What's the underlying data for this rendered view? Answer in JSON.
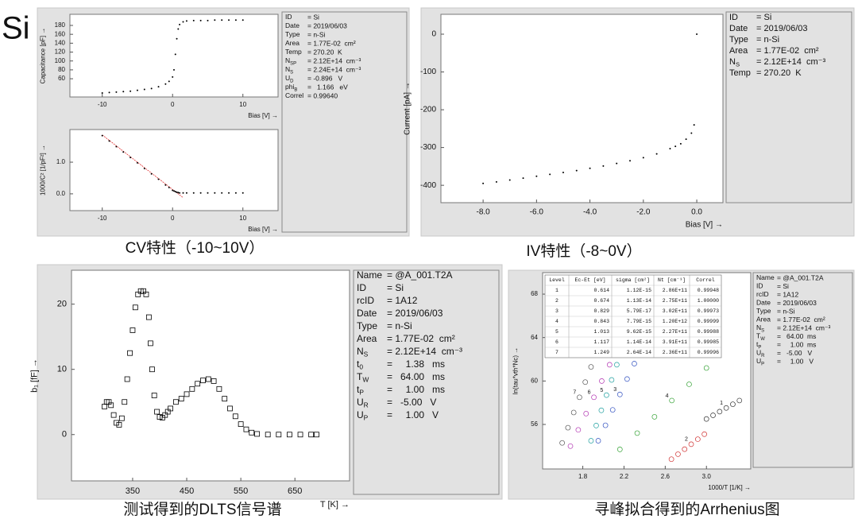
{
  "title": "Si",
  "chart_data": [
    {
      "type": "scatter",
      "xlabel": "Bias [V] →",
      "ylabel": "Capacitance [pF] →",
      "xlim": [
        -14.6,
        15
      ],
      "ylim": [
        19,
        205
      ],
      "xticks": [
        -10,
        0,
        10
      ],
      "yticks": [
        60,
        80,
        100,
        120,
        140,
        160,
        180
      ],
      "series": [
        {
          "marker": "dot",
          "color": "#000000",
          "x": [
            -10,
            -9,
            -8,
            -7,
            -6,
            -5,
            -4,
            -3,
            -2,
            -1,
            -0.5,
            0,
            0.2,
            0.4,
            0.6,
            0.8,
            1,
            1.5,
            2,
            3,
            4,
            5,
            6,
            7,
            8,
            9,
            10
          ],
          "values": [
            28,
            29,
            30,
            31,
            32,
            34,
            36,
            38,
            42,
            48,
            54,
            64,
            80,
            115,
            150,
            172,
            182,
            188,
            190,
            191,
            191,
            191,
            192,
            192,
            192,
            192,
            192
          ]
        }
      ],
      "caption": "CV特性（-10~10V）",
      "info": [
        {
          "key": "ID",
          "value": "= Si"
        },
        {
          "key": "Date",
          "value": "= 2019/06/03"
        },
        {
          "key": "Type",
          "value": "= n-Si"
        },
        {
          "key": "Area",
          "value": "= 1.77E-02  cm²"
        },
        {
          "key": "Temp",
          "value": "= 270.20  K"
        },
        {
          "key": "N",
          "sub": "SP",
          "value": "= 2.12E+14  cm⁻³"
        },
        {
          "key": "N",
          "sub": "S",
          "value": "= 2.24E+14  cm⁻³"
        },
        {
          "key": "U",
          "sub": "D",
          "value": "= -0.896   V"
        },
        {
          "key": "phi",
          "sub": "B",
          "value": "=   1.166   eV"
        },
        {
          "key": "Correl",
          "value": "= 0.99640"
        }
      ]
    },
    {
      "type": "scatter",
      "xlabel": "Bias [V] →",
      "ylabel": "1000/C² [1/pF²] →",
      "xlim": [
        -14.6,
        15
      ],
      "ylim": [
        -0.53,
        2.03
      ],
      "xticks": [
        -10,
        0,
        10
      ],
      "yticks": [
        {
          "value": 0,
          "label": "0.0"
        },
        {
          "value": 1,
          "label": "1.0"
        }
      ],
      "series": [
        {
          "marker": "line",
          "color": "#e03030",
          "x": [
            -10,
            1.5
          ],
          "values": [
            1.86,
            -0.12
          ]
        },
        {
          "marker": "dot",
          "color": "#000000",
          "x": [
            -10,
            -9,
            -8,
            -7,
            -6,
            -5,
            -4,
            -3,
            -2,
            -1,
            -0.5,
            0,
            0.2,
            0.4,
            0.6,
            0.8,
            1,
            1.5,
            2,
            3,
            4,
            5,
            6,
            7,
            8,
            9,
            10
          ],
          "values": [
            1.84,
            1.67,
            1.49,
            1.32,
            1.15,
            0.98,
            0.8,
            0.63,
            0.46,
            0.28,
            0.2,
            0.11,
            0.09,
            0.07,
            0.05,
            0.04,
            0.03,
            0.03,
            0.03,
            0.03,
            0.03,
            0.03,
            0.03,
            0.03,
            0.03,
            0.03,
            0.03
          ]
        }
      ]
    },
    {
      "type": "scatter",
      "xlabel": "Bias [V] →",
      "ylabel": "Current [pA] →",
      "xlim": [
        -9.58,
        0.98
      ],
      "ylim": [
        -446,
        52.6
      ],
      "xticks": [
        {
          "value": -8,
          "label": "-8.0"
        },
        {
          "value": -6,
          "label": "-6.0"
        },
        {
          "value": -4,
          "label": "-4.0"
        },
        {
          "value": -2,
          "label": "-2.0"
        },
        {
          "value": 0,
          "label": "0.0"
        }
      ],
      "yticks": [
        -400,
        -300,
        -200,
        -100,
        0
      ],
      "series": [
        {
          "marker": "dot",
          "color": "#000000",
          "x": [
            -8,
            -7.5,
            -7,
            -6.5,
            -6,
            -5.5,
            -5,
            -4.5,
            -4,
            -3.5,
            -3,
            -2.5,
            -2,
            -1.5,
            -1,
            -0.8,
            -0.6,
            -0.4,
            -0.2,
            -0.1,
            0
          ],
          "values": [
            -395,
            -391,
            -386,
            -381,
            -376,
            -371,
            -366,
            -361,
            -355,
            -349,
            -342,
            -335,
            -327,
            -317,
            -303,
            -297,
            -290,
            -278,
            -262,
            -240,
            0
          ]
        }
      ],
      "caption": "IV特性（-8~0V）",
      "info": [
        {
          "key": "ID",
          "value": "= Si"
        },
        {
          "key": "Date",
          "value": "= 2019/06/03"
        },
        {
          "key": "Type",
          "value": "= n-Si"
        },
        {
          "key": "Area",
          "value": "= 1.77E-02  cm²"
        },
        {
          "key": "N",
          "sub": "S",
          "value": "= 2.12E+14  cm⁻³"
        },
        {
          "key": "Temp",
          "value": "= 270.20  K"
        }
      ]
    },
    {
      "type": "scatter",
      "xlabel": "T [K] →",
      "ylabel": "b₁ [fF] →",
      "xlim": [
        237,
        751
      ],
      "ylim": [
        -7.1,
        25.2
      ],
      "xticks": [
        350,
        450,
        550,
        650
      ],
      "yticks": [
        0,
        10,
        20
      ],
      "series": [
        {
          "marker": "square",
          "color": "#000000",
          "x": [
            298,
            302,
            306,
            310,
            315,
            320,
            325,
            330,
            335,
            340,
            345,
            350,
            355,
            360,
            365,
            370,
            375,
            380,
            383,
            386,
            390,
            395,
            400,
            405,
            410,
            415,
            420,
            430,
            440,
            450,
            460,
            470,
            480,
            490,
            500,
            510,
            520,
            530,
            540,
            550,
            560,
            570,
            580,
            600,
            620,
            640,
            660,
            680,
            690
          ],
          "values": [
            4.3,
            5,
            5,
            4.5,
            3,
            1.8,
            1.5,
            2.5,
            5,
            8.5,
            12.5,
            16,
            19.5,
            21.5,
            22,
            22,
            21.5,
            18,
            14,
            10,
            6,
            3.5,
            2.7,
            2.6,
            3,
            3.5,
            4,
            5,
            5.5,
            6.2,
            7,
            7.8,
            8.3,
            8.5,
            8.2,
            7,
            5.5,
            4,
            2.8,
            1.6,
            0.8,
            0.3,
            0.1,
            0,
            0,
            0,
            0,
            0,
            0
          ]
        }
      ],
      "caption": "测试得到的DLTS信号谱",
      "info": [
        {
          "key": "Name",
          "value": "= @A_001.T2A"
        },
        {
          "key": "ID",
          "value": "= Si"
        },
        {
          "key": "rcID",
          "value": "= 1A12"
        },
        {
          "key": "Date",
          "value": "= 2019/06/03"
        },
        {
          "key": "Type",
          "value": "= n-Si"
        },
        {
          "key": "Area",
          "value": "= 1.77E-02  cm²"
        },
        {
          "key": "N",
          "sub": "S",
          "value": "= 2.12E+14  cm⁻³"
        },
        {
          "key": "t",
          "sub": "0",
          "value": "=     1.38   ms"
        },
        {
          "key": "T",
          "sub": "W",
          "value": "=   64.00   ms"
        },
        {
          "key": "t",
          "sub": "P",
          "value": "=     1.00   ms"
        },
        {
          "key": "U",
          "sub": "R",
          "value": "=   -5.00   V"
        },
        {
          "key": "U",
          "sub": "P",
          "value": "=     1.00   V"
        }
      ]
    },
    {
      "type": "scatter",
      "xlabel": "1000/T [1/K] →",
      "ylabel": "ln(tau*vth*Nc) →",
      "xlim": [
        1.41,
        3.43
      ],
      "ylim": [
        51.9,
        69.98
      ],
      "xticks": [
        1.8,
        2.2,
        2.6,
        {
          "value": 3,
          "label": "3.0"
        }
      ],
      "yticks": [
        56,
        60,
        64,
        68
      ],
      "series": [
        {
          "name": "1",
          "marker": "circle",
          "color": "#333333",
          "x": [
            3.0,
            3.064,
            3.128,
            3.192,
            3.256,
            3.32
          ],
          "values": [
            56.5,
            56.84,
            57.18,
            57.52,
            57.86,
            58.2
          ]
        },
        {
          "name": "2",
          "marker": "circle",
          "color": "#d03030",
          "x": [
            2.66,
            2.724,
            2.788,
            2.852,
            2.916,
            2.98
          ],
          "values": [
            52.8,
            53.26,
            53.72,
            54.18,
            54.64,
            55.1
          ]
        },
        {
          "name": "3",
          "marker": "circle",
          "color": "#3050c0",
          "x": [
            1.95,
            2.02,
            2.09,
            2.16,
            2.23,
            2.3
          ],
          "values": [
            54.5,
            55.92,
            57.34,
            58.76,
            60.18,
            61.6
          ]
        },
        {
          "name": "4",
          "marker": "circle",
          "color": "#30a030",
          "x": [
            2.16,
            2.328,
            2.496,
            2.664,
            2.832,
            3.0
          ],
          "values": [
            53.7,
            55.2,
            56.7,
            58.2,
            59.7,
            61.2
          ]
        },
        {
          "name": "5",
          "marker": "circle",
          "color": "#20a0a0",
          "x": [
            1.88,
            1.93,
            1.98,
            2.03,
            2.08,
            2.13
          ],
          "values": [
            54.5,
            55.9,
            57.3,
            58.7,
            60.1,
            61.5
          ]
        },
        {
          "name": "6",
          "marker": "circle",
          "color": "#b030b0",
          "x": [
            1.68,
            1.756,
            1.832,
            1.908,
            1.984,
            2.06
          ],
          "values": [
            54.0,
            55.5,
            57.0,
            58.5,
            60.0,
            61.5
          ]
        },
        {
          "name": "7",
          "marker": "circle",
          "color": "#555555",
          "x": [
            1.6,
            1.656,
            1.712,
            1.768,
            1.824,
            1.88
          ],
          "values": [
            54.3,
            55.7,
            57.1,
            58.5,
            59.9,
            61.3
          ]
        }
      ],
      "table": {
        "columns": [
          "Level",
          "Ec-Et [eV]",
          "sigma [cm²]",
          "Nt [cm⁻³]",
          "Correl"
        ],
        "rows": [
          [
            "1",
            "0.614",
            "1.12E-15",
            "2.86E+11",
            "0.99948"
          ],
          [
            "2",
            "0.674",
            "1.13E-14",
            "2.75E+11",
            "1.00000"
          ],
          [
            "3",
            "0.829",
            "5.79E-17",
            "3.02E+11",
            "0.99973"
          ],
          [
            "4",
            "0.843",
            "7.79E-15",
            "1.20E+12",
            "0.99999"
          ],
          [
            "5",
            "1.013",
            "9.62E-15",
            "2.27E+11",
            "0.99988"
          ],
          [
            "6",
            "1.117",
            "1.14E-14",
            "3.91E+11",
            "0.99985"
          ],
          [
            "7",
            "1.249",
            "2.64E-14",
            "2.36E+11",
            "0.99996"
          ]
        ]
      },
      "caption": "寻峰拟合得到的Arrhenius图",
      "info": [
        {
          "key": "Name",
          "value": "= @A_001.T2A"
        },
        {
          "key": "ID",
          "value": "= Si"
        },
        {
          "key": "rcID",
          "value": "= 1A12"
        },
        {
          "key": "Date",
          "value": "= 2019/06/03"
        },
        {
          "key": "Type",
          "value": "= n-Si"
        },
        {
          "key": "Area",
          "value": "= 1.77E-02  cm²"
        },
        {
          "key": "N",
          "sub": "S",
          "value": "= 2.12E+14  cm⁻³"
        },
        {
          "key": "T",
          "sub": "W",
          "value": "=   64.00  ms"
        },
        {
          "key": "t",
          "sub": "P",
          "value": "=     1.00  ms"
        },
        {
          "key": "U",
          "sub": "R",
          "value": "=   -5.00   V"
        },
        {
          "key": "U",
          "sub": "P",
          "value": "=     1.00   V"
        }
      ]
    }
  ]
}
